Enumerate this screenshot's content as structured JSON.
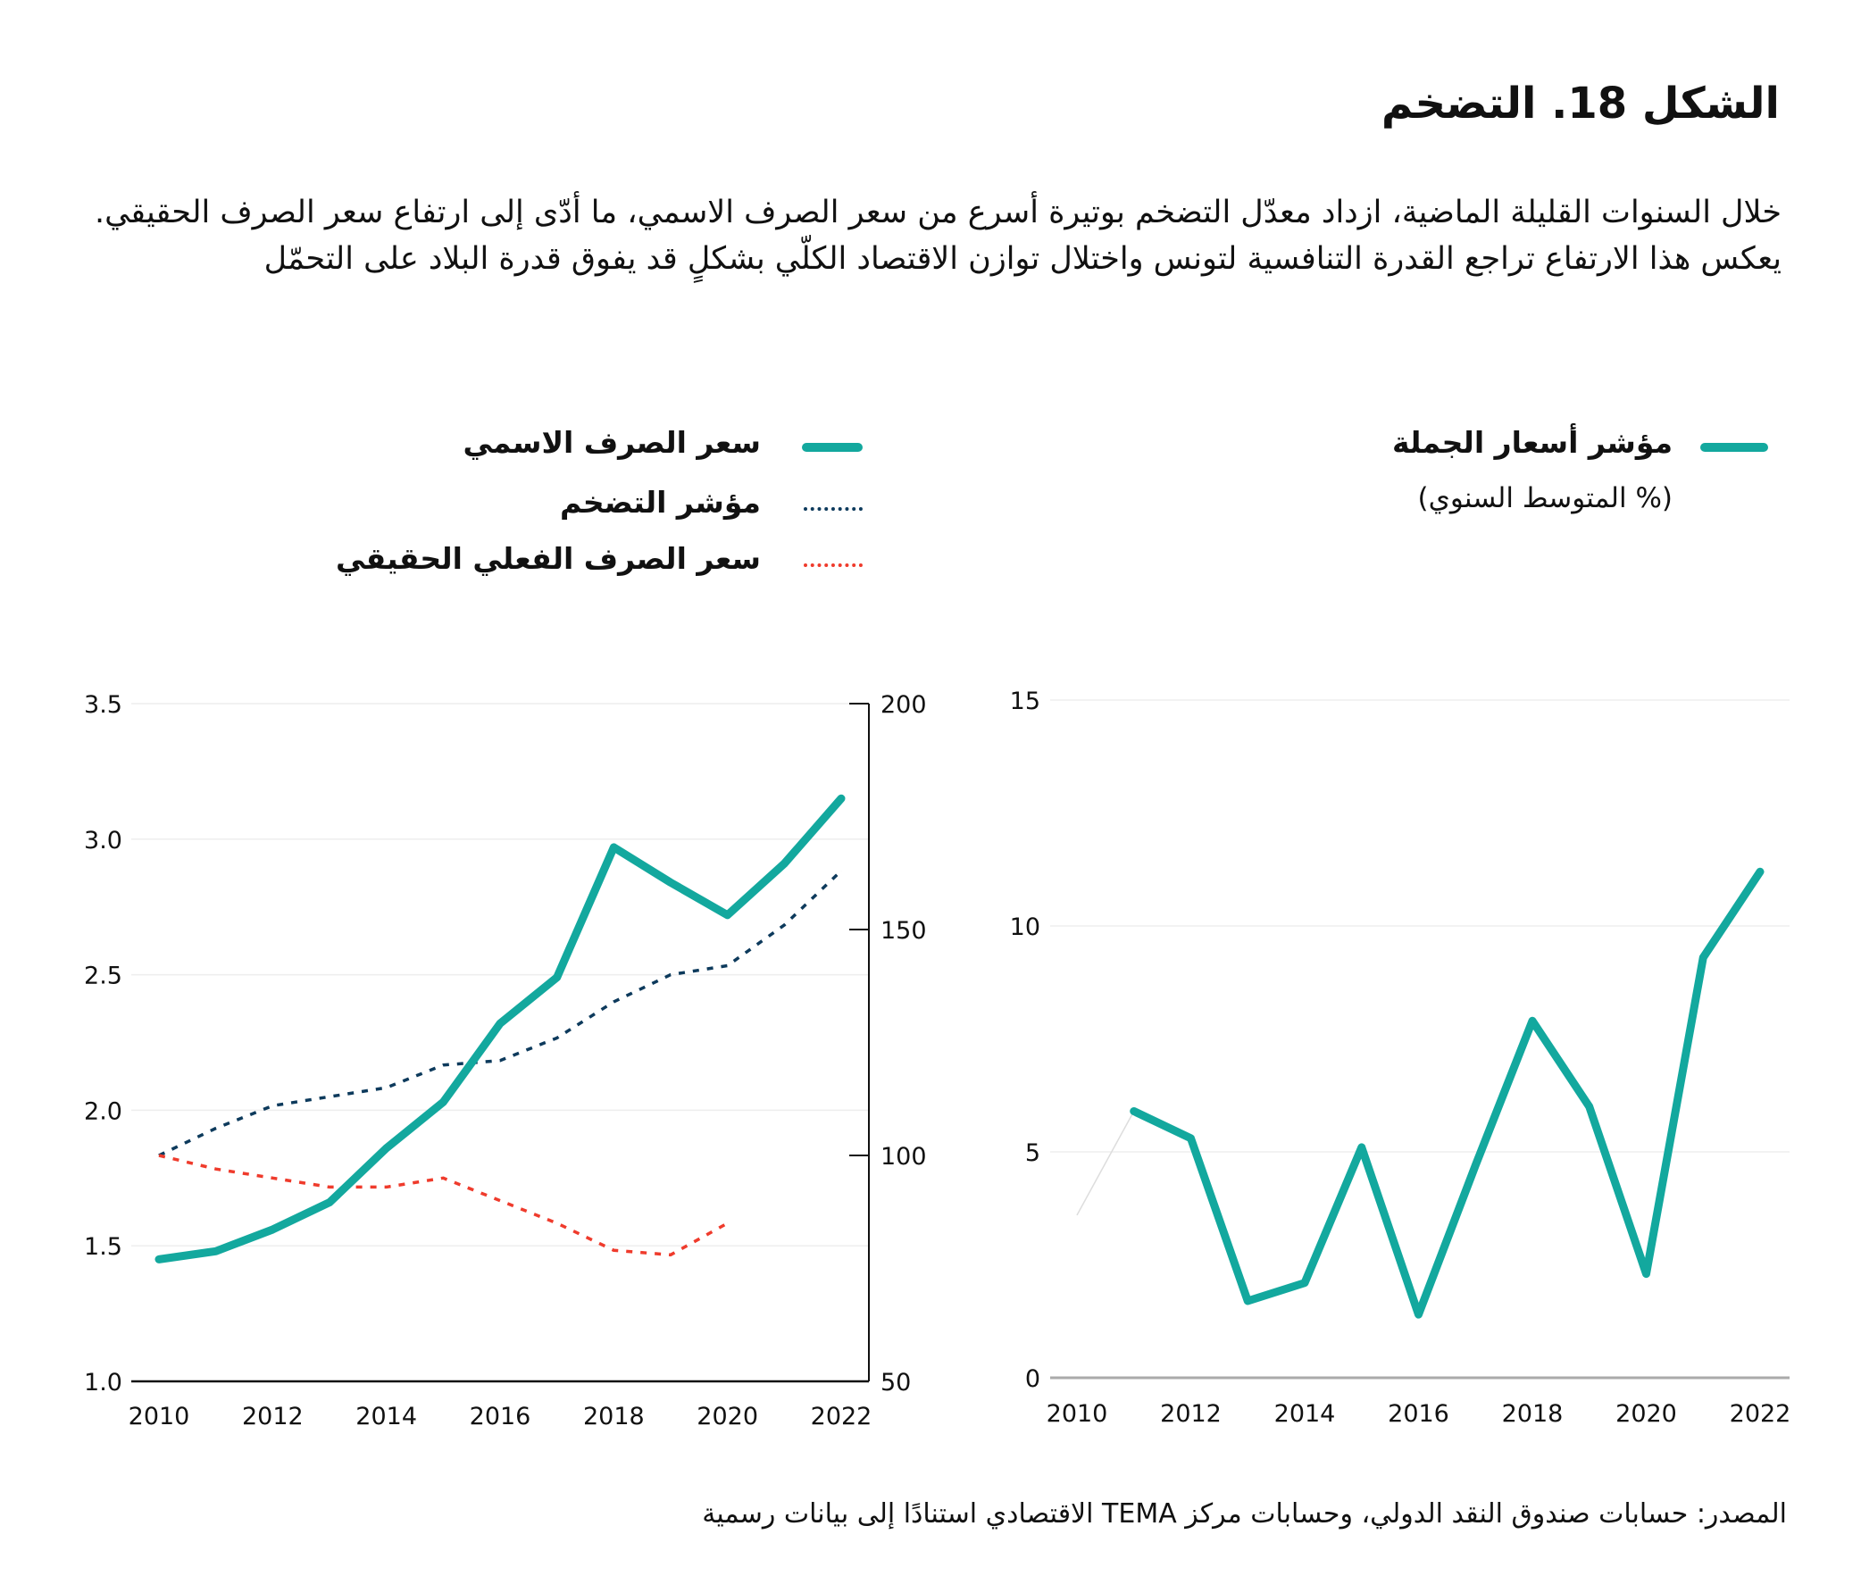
{
  "title": "الشكل 18. التضخم",
  "paragraph": "خلال السنوات القليلة الماضية، ازداد معدّل التضخم بوتيرة أسرع من سعر الصرف الاسمي، ما أدّى إلى ارتفاع سعر الصرف الحقيقي. يعكس هذا الارتفاع تراجع القدرة التنافسية لتونس واختلال توازن الاقتصاد الكلّي بشكلٍ قد يفوق قدرة البلاد على التحمّل",
  "source": "المصدر: حسابات صندوق النقد الدولي، وحسابات مركز TEMA الاقتصادي استنادًا إلى بيانات رسمية",
  "colors": {
    "teal": "#13a89e",
    "navy": "#0d3a5c",
    "red": "#ef3b2c",
    "grid": "#eeeeee",
    "axis": "#111111"
  },
  "chart_data": [
    {
      "type": "line",
      "legend_placement": "top",
      "grid": true,
      "x": [
        2010,
        2011,
        2012,
        2013,
        2014,
        2015,
        2016,
        2017,
        2018,
        2019,
        2020,
        2021,
        2022
      ],
      "x_tick_labels": [
        "2010",
        "2012",
        "2014",
        "2016",
        "2018",
        "2020",
        "2022"
      ],
      "left_axis": {
        "ylim": [
          1.0,
          3.5
        ],
        "tick_labels": [
          "1.0",
          "1.5",
          "2.0",
          "2.5",
          "3.0",
          "3.5"
        ]
      },
      "right_axis": {
        "ylim": [
          50,
          200
        ],
        "tick_labels": [
          "50",
          "100",
          "150",
          "200"
        ]
      },
      "series": [
        {
          "name": "سعر الصرف الاسمي",
          "axis": "left",
          "style": "solid",
          "color": "#13a89e",
          "values": [
            1.45,
            1.48,
            1.56,
            1.66,
            1.86,
            2.03,
            2.32,
            2.49,
            2.97,
            2.84,
            2.72,
            2.91,
            3.15
          ]
        },
        {
          "name": "مؤشر التضخم",
          "axis": "right",
          "style": "dotted",
          "color": "#0d3a5c",
          "values": [
            100,
            106,
            111,
            113,
            115,
            120,
            121,
            126,
            134,
            140,
            142,
            151,
            163
          ]
        },
        {
          "name": "سعر الصرف الفعلي الحقيقي",
          "axis": "right",
          "style": "dotted",
          "color": "#ef3b2c",
          "values": [
            100,
            97,
            95,
            93,
            93,
            95,
            90,
            85,
            79,
            78,
            85,
            null,
            null
          ]
        }
      ]
    },
    {
      "type": "line",
      "legend_placement": "top-right",
      "grid": true,
      "subtitle": "(% المتوسط السنوي)",
      "x": [
        2010,
        2011,
        2012,
        2013,
        2014,
        2015,
        2016,
        2017,
        2018,
        2019,
        2020,
        2021,
        2022
      ],
      "x_tick_labels": [
        "2010",
        "2012",
        "2014",
        "2016",
        "2018",
        "2020",
        "2022"
      ],
      "ylim": [
        0,
        15
      ],
      "y_tick_labels": [
        "0",
        "5",
        "10",
        "15"
      ],
      "series": [
        {
          "name": "مؤشر أسعار الجملة",
          "style": "solid",
          "color": "#13a89e",
          "values": [
            3.6,
            5.9,
            5.3,
            1.7,
            2.1,
            5.1,
            1.4,
            4.7,
            7.9,
            6.0,
            2.3,
            9.3,
            11.2
          ]
        }
      ]
    }
  ]
}
